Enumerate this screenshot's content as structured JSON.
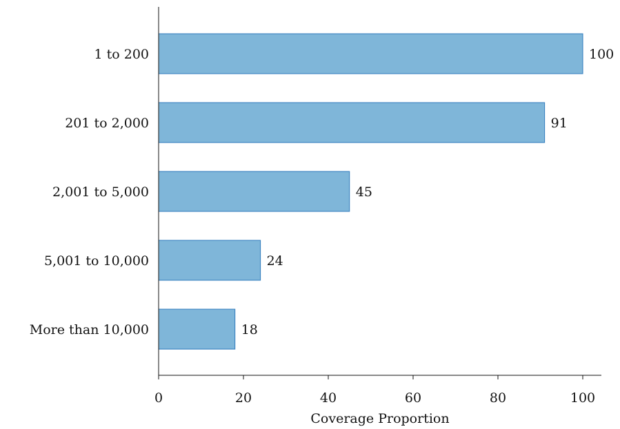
{
  "chart_data": {
    "type": "bar",
    "orientation": "horizontal",
    "categories": [
      "1 to 200",
      "201 to 2,000",
      "2,001 to 5,000",
      "5,001 to 10,000",
      "More than 10,000"
    ],
    "values": [
      100,
      91,
      45,
      24,
      18
    ],
    "value_labels": [
      "100",
      "91",
      "45",
      "24",
      "18"
    ],
    "xlabel": "Coverage Proportion",
    "ylabel": "",
    "xlim": [
      0,
      105
    ],
    "xticks": [
      0,
      20,
      40,
      60,
      80,
      100
    ],
    "xtick_labels": [
      "0",
      "20",
      "40",
      "60",
      "80",
      "100"
    ],
    "grid": false,
    "bar_color": "#7fb6d9",
    "bar_edge_color": "#2f7bbd"
  }
}
